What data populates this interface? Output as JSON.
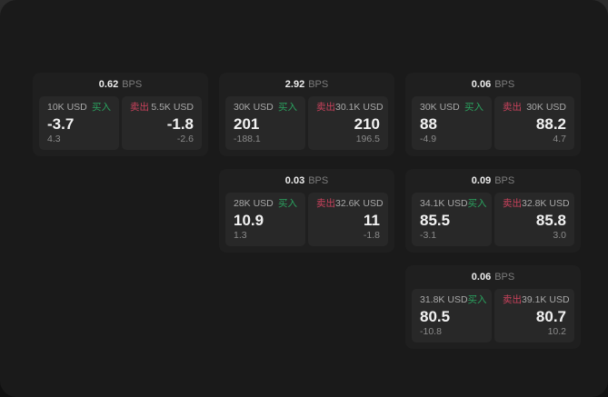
{
  "theme": {
    "buy_green": "#2aa35f",
    "sell_red": "#ca425c",
    "page_bg": "#1a1a1a",
    "card_bg": "#1f1f1f",
    "panel_bg": "#282828"
  },
  "labels": {
    "bps_unit": "BPS",
    "buy": "买入",
    "sell": "卖出"
  },
  "cards": [
    {
      "bps": "0.62",
      "buy": {
        "amount": "10K USD",
        "price": "-3.7",
        "delta": "4.3"
      },
      "sell": {
        "amount": "5.5K USD",
        "price": "-1.8",
        "delta": "-2.6"
      }
    },
    {
      "bps": "2.92",
      "buy": {
        "amount": "30K USD",
        "price": "201",
        "delta": "-188.1"
      },
      "sell": {
        "amount": "30.1K USD",
        "price": "210",
        "delta": "196.5"
      }
    },
    {
      "bps": "0.06",
      "buy": {
        "amount": "30K USD",
        "price": "88",
        "delta": "-4.9"
      },
      "sell": {
        "amount": "30K USD",
        "price": "88.2",
        "delta": "4.7"
      }
    },
    {
      "bps": "0.03",
      "buy": {
        "amount": "28K USD",
        "price": "10.9",
        "delta": "1.3"
      },
      "sell": {
        "amount": "32.6K USD",
        "price": "11",
        "delta": "-1.8"
      }
    },
    {
      "bps": "0.09",
      "buy": {
        "amount": "34.1K USD",
        "price": "85.5",
        "delta": "-3.1"
      },
      "sell": {
        "amount": "32.8K USD",
        "price": "85.8",
        "delta": "3.0"
      }
    },
    {
      "bps": "0.06",
      "buy": {
        "amount": "31.8K USD",
        "price": "80.5",
        "delta": "-10.8"
      },
      "sell": {
        "amount": "39.1K USD",
        "price": "80.7",
        "delta": "10.2"
      }
    }
  ]
}
